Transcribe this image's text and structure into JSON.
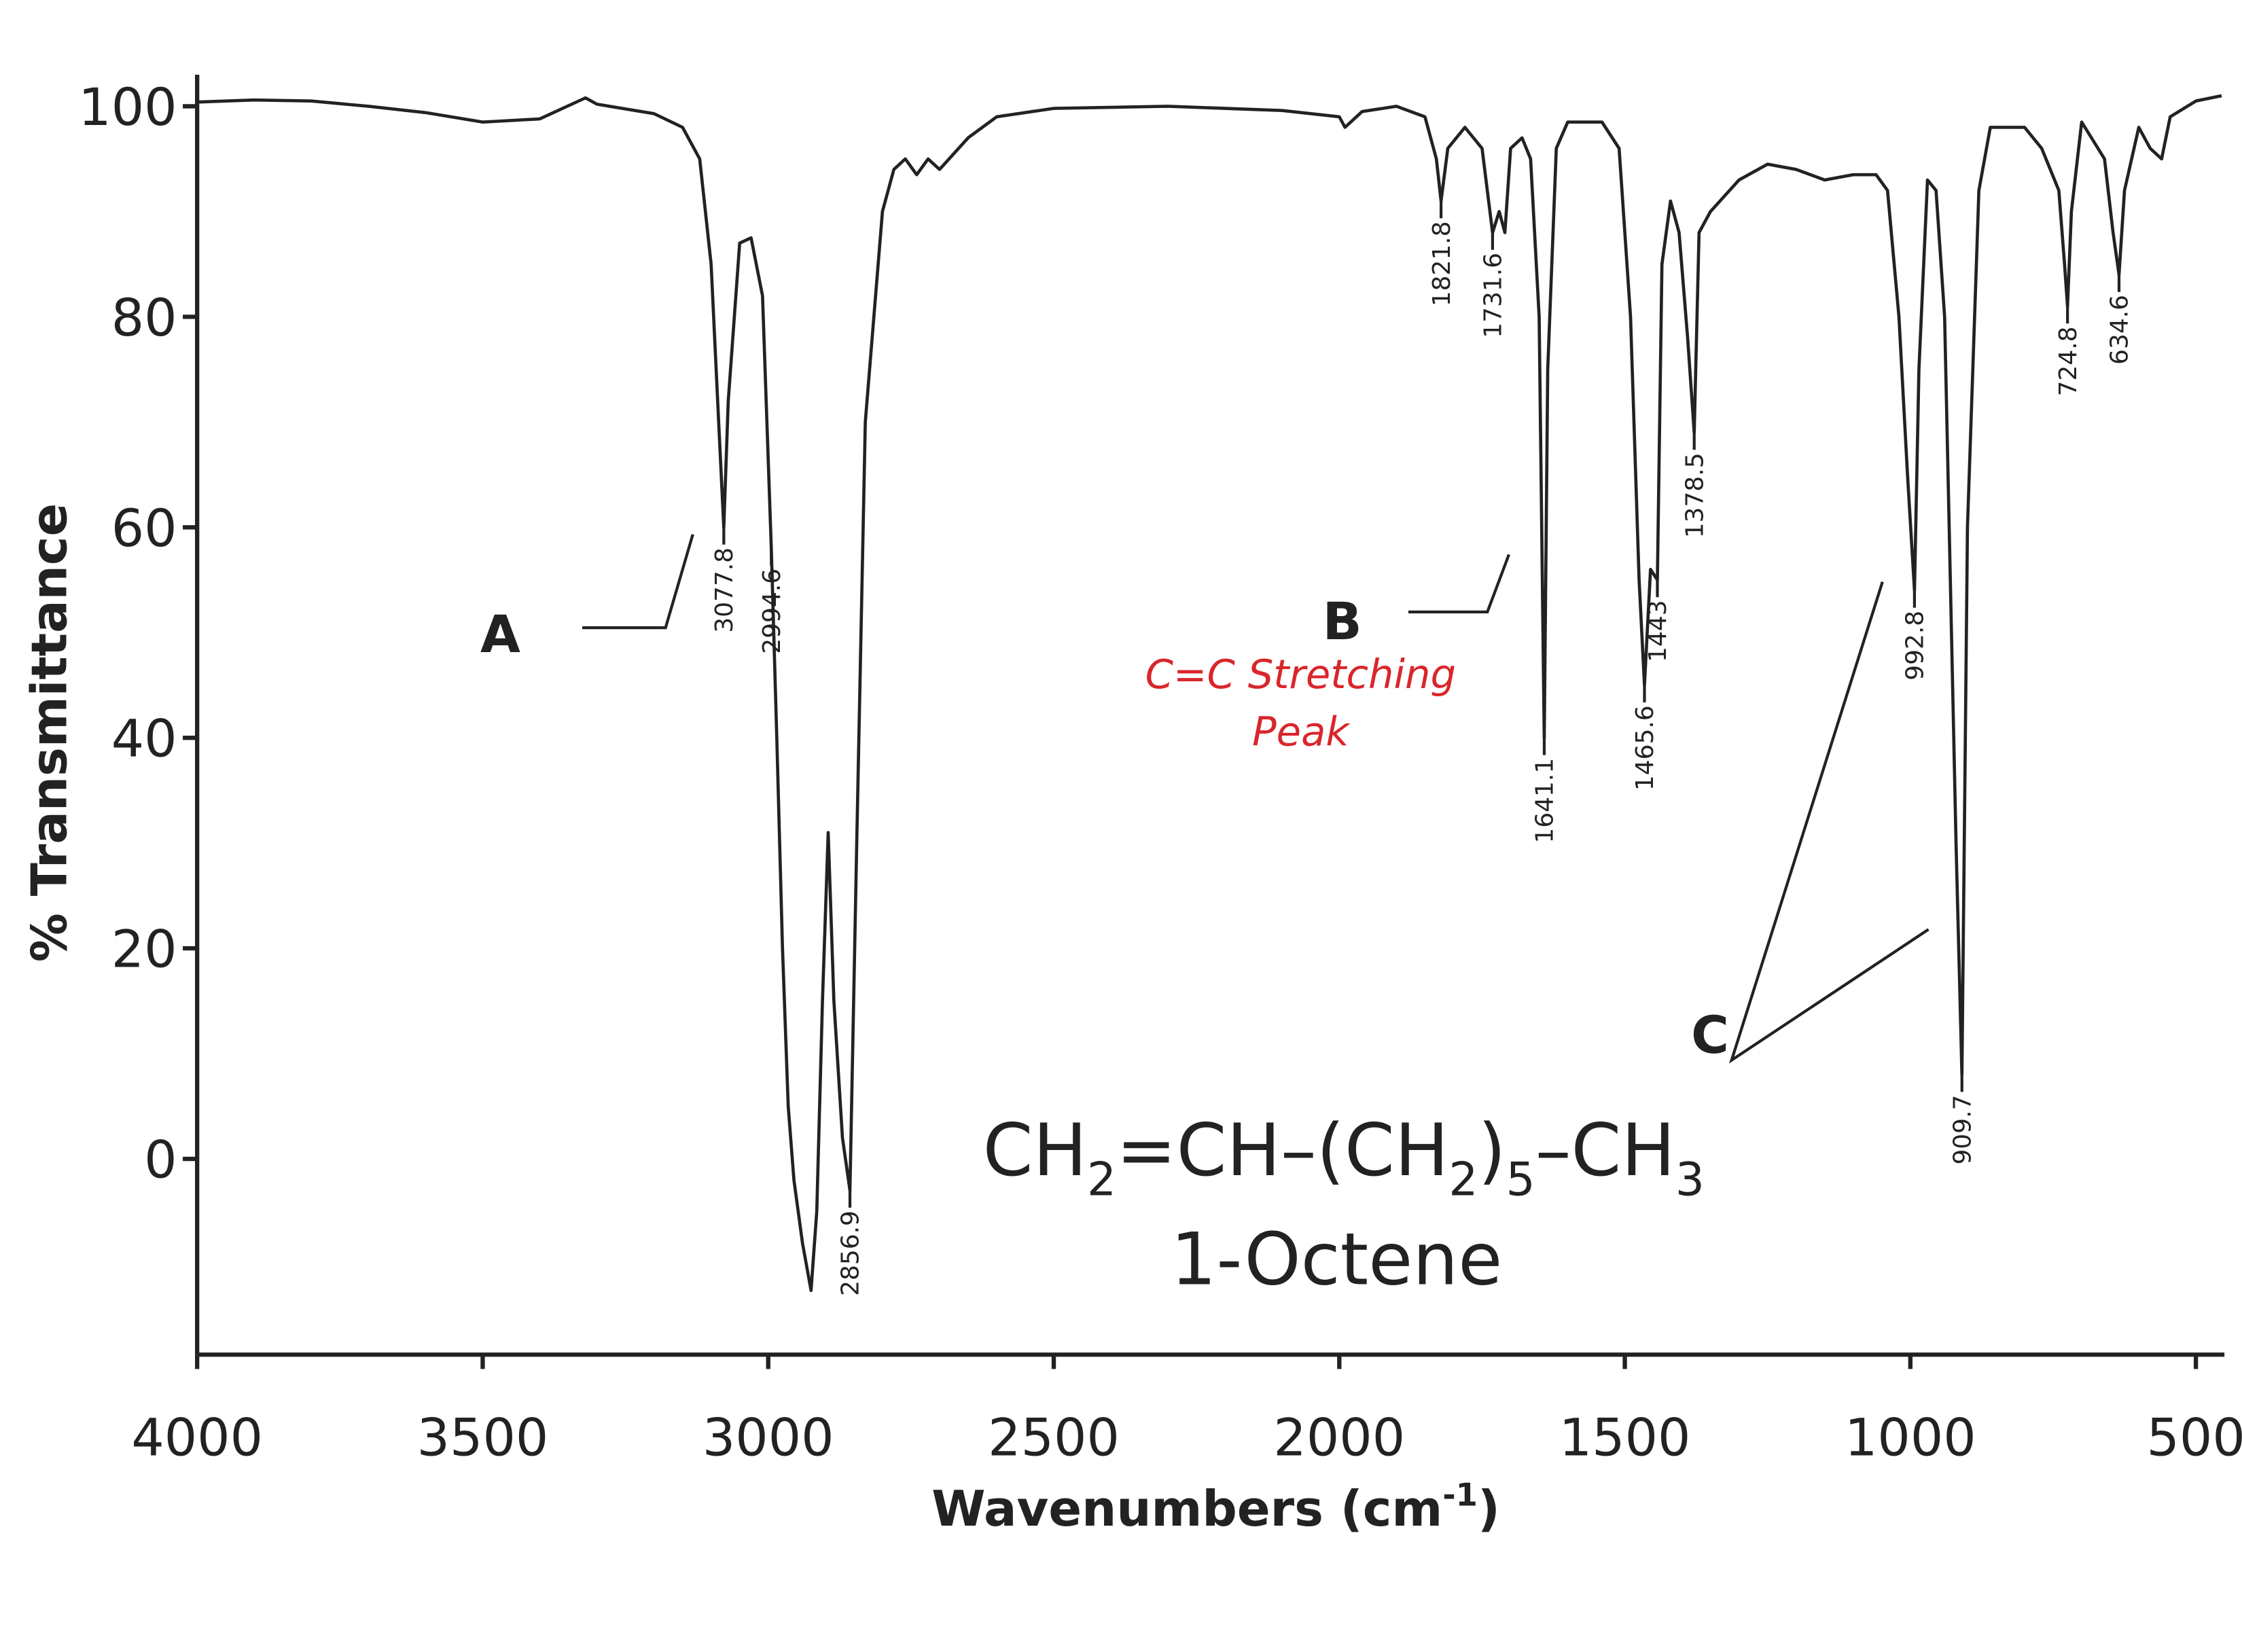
{
  "chart_data": {
    "type": "line",
    "y_label": "% Transmittance",
    "x_label": {
      "text": "Wavenumbers (cm",
      "sup": "-1",
      "end": ")"
    },
    "xlim": [
      4000,
      450
    ],
    "xticks": [
      4000,
      3500,
      3000,
      2500,
      2000,
      1500,
      1000,
      500
    ],
    "ylim": [
      -18.6,
      103
    ],
    "yticks": [
      0,
      20,
      40,
      60,
      80,
      100
    ],
    "color": "#222222",
    "x": [
      4000,
      3900,
      3800,
      3700,
      3600,
      3500,
      3400,
      3320,
      3300,
      3200,
      3150,
      3120,
      3100,
      3085,
      3077.8,
      3070,
      3050,
      3030,
      3010,
      2994.6,
      2985,
      2975,
      2965,
      2955,
      2940,
      2925,
      2915,
      2905,
      2895,
      2885,
      2870,
      2856.9,
      2845,
      2830,
      2800,
      2780,
      2760,
      2740,
      2720,
      2700,
      2650,
      2600,
      2500,
      2300,
      2100,
      2000,
      1990,
      1960,
      1900,
      1850,
      1830,
      1821.8,
      1810,
      1780,
      1750,
      1731.6,
      1720,
      1710,
      1700,
      1680,
      1665,
      1650,
      1641.1,
      1635,
      1620,
      1600,
      1540,
      1510,
      1490,
      1475,
      1465.6,
      1455,
      1443,
      1435,
      1420,
      1405,
      1390,
      1378.5,
      1370,
      1350,
      1300,
      1250,
      1200,
      1150,
      1100,
      1060,
      1040,
      1020,
      1005,
      992.8,
      985,
      970,
      955,
      940,
      920,
      909.7,
      900,
      880,
      860,
      800,
      770,
      740,
      730,
      724.8,
      718,
      700,
      660,
      645,
      634.6,
      625,
      600,
      580,
      560,
      545,
      500,
      455
    ],
    "values": [
      100.4,
      100.6,
      100.5,
      100,
      99.4,
      98.5,
      98.8,
      100.8,
      100.2,
      99.3,
      98,
      95,
      85,
      68,
      60,
      72,
      87,
      87.5,
      82,
      58,
      40,
      20,
      5,
      -2,
      -8,
      -12.5,
      -5,
      15,
      31,
      15,
      2,
      -3,
      30,
      70,
      90,
      94,
      95,
      93.5,
      95,
      94,
      97,
      99,
      99.8,
      100,
      99.6,
      99,
      98,
      99.5,
      100,
      99,
      95,
      91,
      96,
      98,
      96,
      88,
      90,
      88,
      96,
      97,
      95,
      80,
      40,
      75,
      96,
      98.5,
      98.5,
      96,
      80,
      55,
      45,
      56,
      55,
      85,
      91,
      88,
      78,
      69,
      88,
      90,
      93,
      94.5,
      94,
      93,
      93.5,
      93.5,
      92,
      80,
      65,
      54,
      75,
      93,
      92,
      80,
      30,
      8,
      60,
      92,
      98,
      98,
      96,
      92,
      85,
      81,
      90,
      98.5,
      95,
      88,
      84,
      92,
      98,
      96,
      95,
      99,
      100.5,
      101
    ],
    "peaks": [
      {
        "x": 3077.8,
        "y": 60
      },
      {
        "x": 2994.6,
        "y": 58
      },
      {
        "x": 2856.9,
        "y": -3
      },
      {
        "x": 1821.8,
        "y": 91
      },
      {
        "x": 1731.6,
        "y": 88
      },
      {
        "x": 1641.1,
        "y": 40
      },
      {
        "x": 1465.6,
        "y": 45
      },
      {
        "x": 1443.0,
        "y": 55
      },
      {
        "x": 1378.5,
        "y": 69
      },
      {
        "x": 992.8,
        "y": 54
      },
      {
        "x": 909.7,
        "y": 8
      },
      {
        "x": 724.8,
        "y": 81
      },
      {
        "x": 634.6,
        "y": 84
      }
    ],
    "annotations": {
      "a": "A",
      "b": "B",
      "c": "C",
      "note": [
        "C=C Stretching",
        "Peak"
      ]
    },
    "formula": [
      {
        "text": "CH"
      },
      {
        "text": "2",
        "sub": true
      },
      {
        "text": "=CH–(CH"
      },
      {
        "text": "2",
        "sub": true
      },
      {
        "text": ")"
      },
      {
        "text": "5",
        "sub": true
      },
      {
        "text": "–CH"
      },
      {
        "text": "3",
        "sub": true
      }
    ],
    "compound": "1-Octene"
  }
}
